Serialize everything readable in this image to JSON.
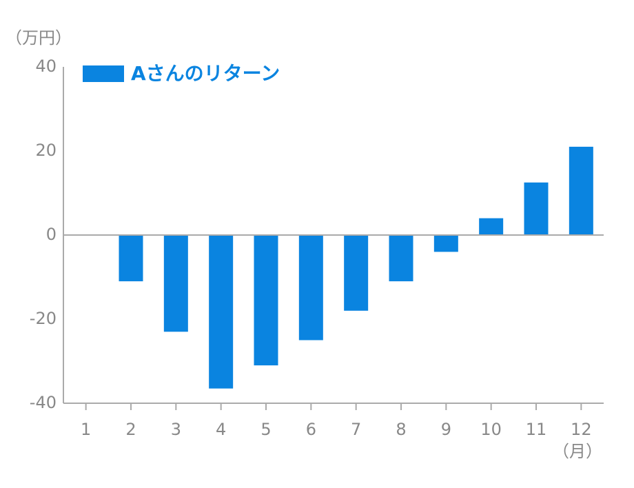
{
  "chart_data": {
    "type": "bar",
    "y_unit": "（万円）",
    "x_unit": "（月）",
    "categories": [
      "1",
      "2",
      "3",
      "4",
      "5",
      "6",
      "7",
      "8",
      "9",
      "10",
      "11",
      "12"
    ],
    "series": [
      {
        "name": "Aさんのリターン",
        "color": "#0a84e0",
        "values": [
          0,
          -11,
          -23,
          -36.5,
          -31,
          -25,
          -18,
          -11,
          -4,
          4,
          12.5,
          21
        ]
      }
    ],
    "ylim": [
      -40,
      40
    ],
    "yticks": [
      -40,
      -20,
      0,
      20,
      40
    ],
    "grid": false,
    "legend": "upper left"
  }
}
